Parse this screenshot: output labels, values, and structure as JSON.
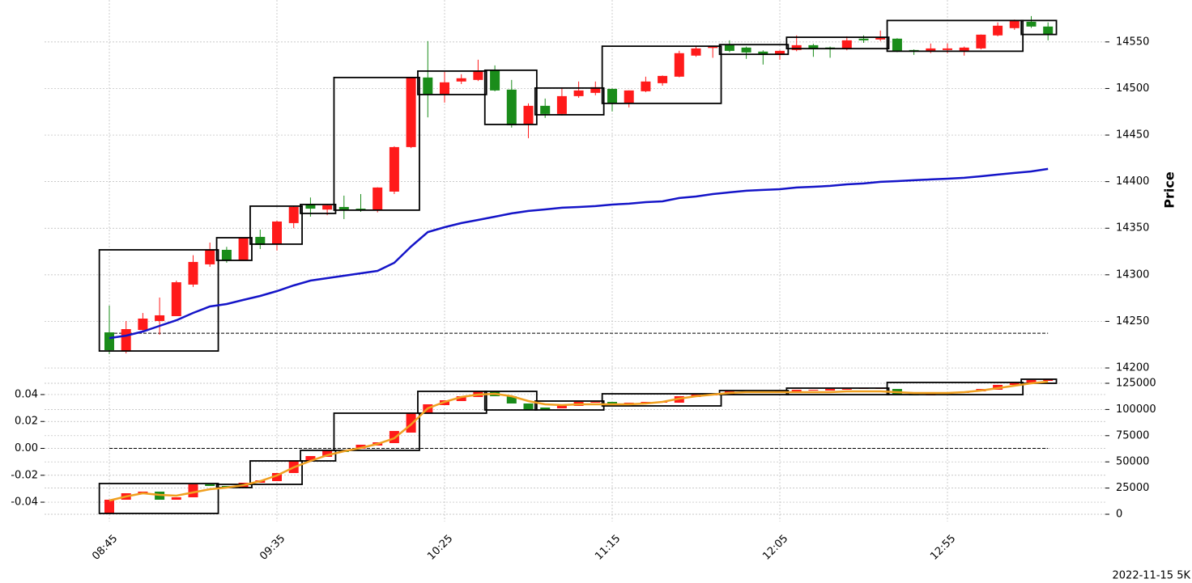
{
  "chart_data": [
    {
      "type": "candlestick",
      "ylabel": "Price",
      "up_color": "#ff1a1a",
      "down_color": "#1a8c1a",
      "grid": true,
      "ylim": [
        14195.7,
        14595
      ],
      "yticks": [
        14200,
        14250,
        14300,
        14350,
        14400,
        14450,
        14500,
        14550
      ],
      "open": [
        14238.2,
        14217.4,
        14240.8,
        14250.4,
        14255.6,
        14289.5,
        14311.2,
        14326.8,
        14315.5,
        14340.7,
        14332.9,
        14355.5,
        14375.4,
        14370,
        14372.8,
        14371,
        14369.4,
        14389.3,
        14437.1,
        14511.8,
        14493.5,
        14507.5,
        14509.2,
        14519.6,
        14498.8,
        14461.4,
        14481.4,
        14472.7,
        14491.8,
        14495.3,
        14499.6,
        14484,
        14497,
        14505.7,
        14512.7,
        14535.3,
        14543.5,
        14546.5,
        14543.9,
        14539.6,
        14536.1,
        14541.3,
        14546.5,
        14544,
        14542.2,
        14553.5,
        14552.6,
        14553.5,
        14541.3,
        14539.6,
        14541.3,
        14539.6,
        14543,
        14557,
        14564.8,
        14571.7,
        14566.5
      ],
      "high": [
        14266.9,
        14250.4,
        14259,
        14275.6,
        14293.8,
        14321,
        14334.6,
        14330,
        14340,
        14348.5,
        14358,
        14374,
        14383,
        14376,
        14385,
        14386.7,
        14394,
        14438,
        14512,
        14550.9,
        14517.9,
        14515.3,
        14530.9,
        14524.8,
        14509.2,
        14484,
        14489.2,
        14500.5,
        14507.5,
        14507.5,
        14500,
        14498,
        14512.7,
        14514,
        14540.5,
        14545,
        14545.4,
        14551.7,
        14545,
        14541,
        14541,
        14557,
        14548,
        14545,
        14556,
        14557,
        14562.2,
        14554,
        14542,
        14548.3,
        14548.3,
        14545,
        14558,
        14570.9,
        14574,
        14577.8,
        14571
      ],
      "low": [
        14214.8,
        14215.6,
        14239,
        14235.6,
        14255.6,
        14287,
        14308.6,
        14313,
        14315,
        14327.7,
        14326,
        14350,
        14362.4,
        14364,
        14359.8,
        14367.6,
        14367,
        14386.7,
        14436,
        14469,
        14484.9,
        14504.8,
        14508,
        14497,
        14458,
        14446.7,
        14468.4,
        14471,
        14490,
        14492.7,
        14475.3,
        14479.7,
        14496,
        14503,
        14512,
        14534,
        14533,
        14539,
        14531.8,
        14525.7,
        14530.9,
        14540,
        14534,
        14533,
        14541,
        14549,
        14551,
        14539,
        14536.1,
        14538,
        14537.8,
        14535.3,
        14542,
        14556,
        14563,
        14565,
        14551.7
      ],
      "close": [
        14219.1,
        14241.7,
        14253,
        14256.5,
        14292,
        14313.8,
        14326.8,
        14315.5,
        14339.8,
        14332,
        14357.2,
        14372.8,
        14371,
        14374.6,
        14370.2,
        14369.4,
        14393.7,
        14437.1,
        14511.8,
        14493.5,
        14506.6,
        14511,
        14518.7,
        14497.9,
        14460.5,
        14481.4,
        14472.7,
        14491.8,
        14497.9,
        14501.4,
        14484,
        14497.9,
        14507.5,
        14513.5,
        14537.9,
        14543,
        14544.8,
        14540.4,
        14538.7,
        14537,
        14540.4,
        14546.5,
        14543,
        14543,
        14551.7,
        14551.7,
        14555.2,
        14540.4,
        14539.6,
        14543,
        14543,
        14543.9,
        14557.8,
        14567.4,
        14572.6,
        14566.5,
        14557.8
      ],
      "line": {
        "color": "#1414c8",
        "values": [
          14232.1,
          14234.7,
          14239.1,
          14245.2,
          14251.2,
          14259.1,
          14266,
          14268.6,
          14273,
          14277.3,
          14282.5,
          14288.6,
          14293.8,
          14296.4,
          14299,
          14301.6,
          14304.2,
          14312.9,
          14330.3,
          14345.9,
          14351.1,
          14355.5,
          14358.9,
          14362.4,
          14365.9,
          14368.5,
          14370.2,
          14372,
          14372.8,
          14373.7,
          14375.4,
          14376.3,
          14378,
          14378.9,
          14382.4,
          14384.1,
          14386.7,
          14388.5,
          14390.2,
          14391.1,
          14391.9,
          14393.7,
          14394.5,
          14395.4,
          14397.1,
          14398,
          14399.8,
          14400.6,
          14401.5,
          14402.4,
          14403.2,
          14404.1,
          14405.8,
          14407.6,
          14409.3,
          14411,
          14413.7
        ]
      },
      "reference_line": 14237.3,
      "boxes": [
        {
          "first": 0,
          "last": 6,
          "high": 14326.8,
          "low": 14218.2
        },
        {
          "first": 7,
          "last": 8,
          "high": 14339.8,
          "low": 14315.5
        },
        {
          "first": 9,
          "last": 11,
          "high": 14373.7,
          "low": 14332.9
        },
        {
          "first": 12,
          "last": 13,
          "high": 14375.5,
          "low": 14365.9
        },
        {
          "first": 14,
          "last": 18,
          "high": 14511.8,
          "low": 14369.4
        },
        {
          "first": 19,
          "last": 22,
          "high": 14518.7,
          "low": 14493.5
        },
        {
          "first": 23,
          "last": 25,
          "high": 14519.6,
          "low": 14461.4
        },
        {
          "first": 26,
          "last": 29,
          "high": 14500.5,
          "low": 14471.8
        },
        {
          "first": 30,
          "last": 36,
          "high": 14545.4,
          "low": 14484
        },
        {
          "first": 37,
          "last": 40,
          "high": 14547.1,
          "low": 14536.7
        },
        {
          "first": 41,
          "last": 46,
          "high": 14555,
          "low": 14542.8
        },
        {
          "first": 47,
          "last": 54,
          "high": 14573,
          "low": 14540
        },
        {
          "first": 55,
          "last": 56,
          "high": 14573,
          "low": 14558
        }
      ]
    },
    {
      "type": "candlestick",
      "up_color": "#ff1a1a",
      "down_color": "#1a8c1a",
      "grid": true,
      "categories": [
        "08:45",
        null,
        null,
        null,
        null,
        null,
        null,
        null,
        null,
        null,
        "09:35",
        null,
        null,
        null,
        null,
        null,
        null,
        null,
        null,
        null,
        "10:25",
        null,
        null,
        null,
        null,
        null,
        null,
        null,
        null,
        null,
        "11:15",
        null,
        null,
        null,
        null,
        null,
        null,
        null,
        null,
        null,
        "12:05",
        null,
        null,
        null,
        null,
        null,
        null,
        null,
        null,
        null,
        "12:55",
        null,
        null,
        null,
        null,
        null,
        null
      ],
      "ylim": [
        -0.0544,
        0.0526
      ],
      "yticks": [
        -0.04,
        -0.02,
        {
          "value": 0,
          "label": "0.00"
        },
        0.02,
        0.04
      ],
      "y2lim": [
        -6944,
        130400
      ],
      "y2ticks": [
        0,
        25000,
        50000,
        75000,
        100000,
        125000
      ],
      "open": [
        772,
        13889,
        20062,
        21605,
        13889,
        16204,
        28549,
        27006,
        25463,
        30093,
        31636,
        39352,
        50926,
        54784,
        60957,
        62500,
        65587,
        67901,
        77932,
        96450,
        104167,
        108024,
        111883,
        117283,
        112654,
        105710,
        101852,
        101080,
        103395,
        106481,
        107253,
        104938,
        105710,
        106481,
        106481,
        111883,
        113426,
        114197,
        115740,
        116512,
        117283,
        117283,
        118055,
        118055,
        118827,
        119598,
        119598,
        119598,
        114197,
        113426,
        114969,
        115740,
        117283,
        118827,
        123457,
        125000,
        127315
      ],
      "close": [
        13889,
        20062,
        21605,
        13889,
        16204,
        28549,
        27006,
        25463,
        30093,
        32407,
        39352,
        50926,
        55556,
        60957,
        59414,
        66358,
        68672,
        79475,
        96450,
        104938,
        108796,
        112654,
        117283,
        112654,
        105710,
        99537,
        99537,
        103395,
        107253,
        107253,
        105710,
        106481,
        107253,
        107253,
        112654,
        114197,
        114969,
        117283,
        117283,
        117283,
        118055,
        118827,
        118827,
        119598,
        119598,
        120370,
        120370,
        114197,
        113426,
        114969,
        115740,
        117283,
        119598,
        123457,
        125772,
        128086,
        128858
      ],
      "line": {
        "color": "#f0a020",
        "values": [
          13117,
          16975,
          20062,
          18518,
          17747,
          20833,
          23920,
          25463,
          27778,
          31636,
          37037,
          44753,
          50926,
          56327,
          60185,
          63271,
          67129,
          72530,
          85648,
          101080,
          107252,
          111882,
          114197,
          114968,
          112654,
          108024,
          104938,
          104166,
          104938,
          104938,
          104938,
          104938,
          105709,
          107252,
          110339,
          112654,
          114197,
          115740,
          116512,
          116512,
          116512,
          116512,
          116512,
          116512,
          117283,
          117283,
          117283,
          116512,
          115740,
          115740,
          115740,
          116512,
          118055,
          120370,
          122684,
          124999,
          126542
        ]
      },
      "reference_line": 0,
      "boxes": [
        {
          "first": 0,
          "last": 6,
          "high": 29321,
          "low": 772
        },
        {
          "first": 7,
          "last": 8,
          "high": 28549,
          "low": 25463
        },
        {
          "first": 9,
          "last": 11,
          "high": 50926,
          "low": 28549
        },
        {
          "first": 12,
          "last": 13,
          "high": 60957,
          "low": 50926
        },
        {
          "first": 14,
          "last": 18,
          "high": 96450,
          "low": 60957
        },
        {
          "first": 19,
          "last": 22,
          "high": 117283,
          "low": 96450
        },
        {
          "first": 23,
          "last": 25,
          "high": 117283,
          "low": 99537
        },
        {
          "first": 26,
          "last": 29,
          "high": 108024,
          "low": 99537
        },
        {
          "first": 30,
          "last": 36,
          "high": 114969,
          "low": 103395
        },
        {
          "first": 37,
          "last": 40,
          "high": 118055,
          "low": 114197
        },
        {
          "first": 41,
          "last": 46,
          "high": 120370,
          "low": 114197
        },
        {
          "first": 47,
          "last": 54,
          "high": 125772,
          "low": 114197
        },
        {
          "first": 55,
          "last": 56,
          "high": 128858,
          "low": 125000
        }
      ]
    }
  ],
  "footer": "2022-11-15 5K"
}
